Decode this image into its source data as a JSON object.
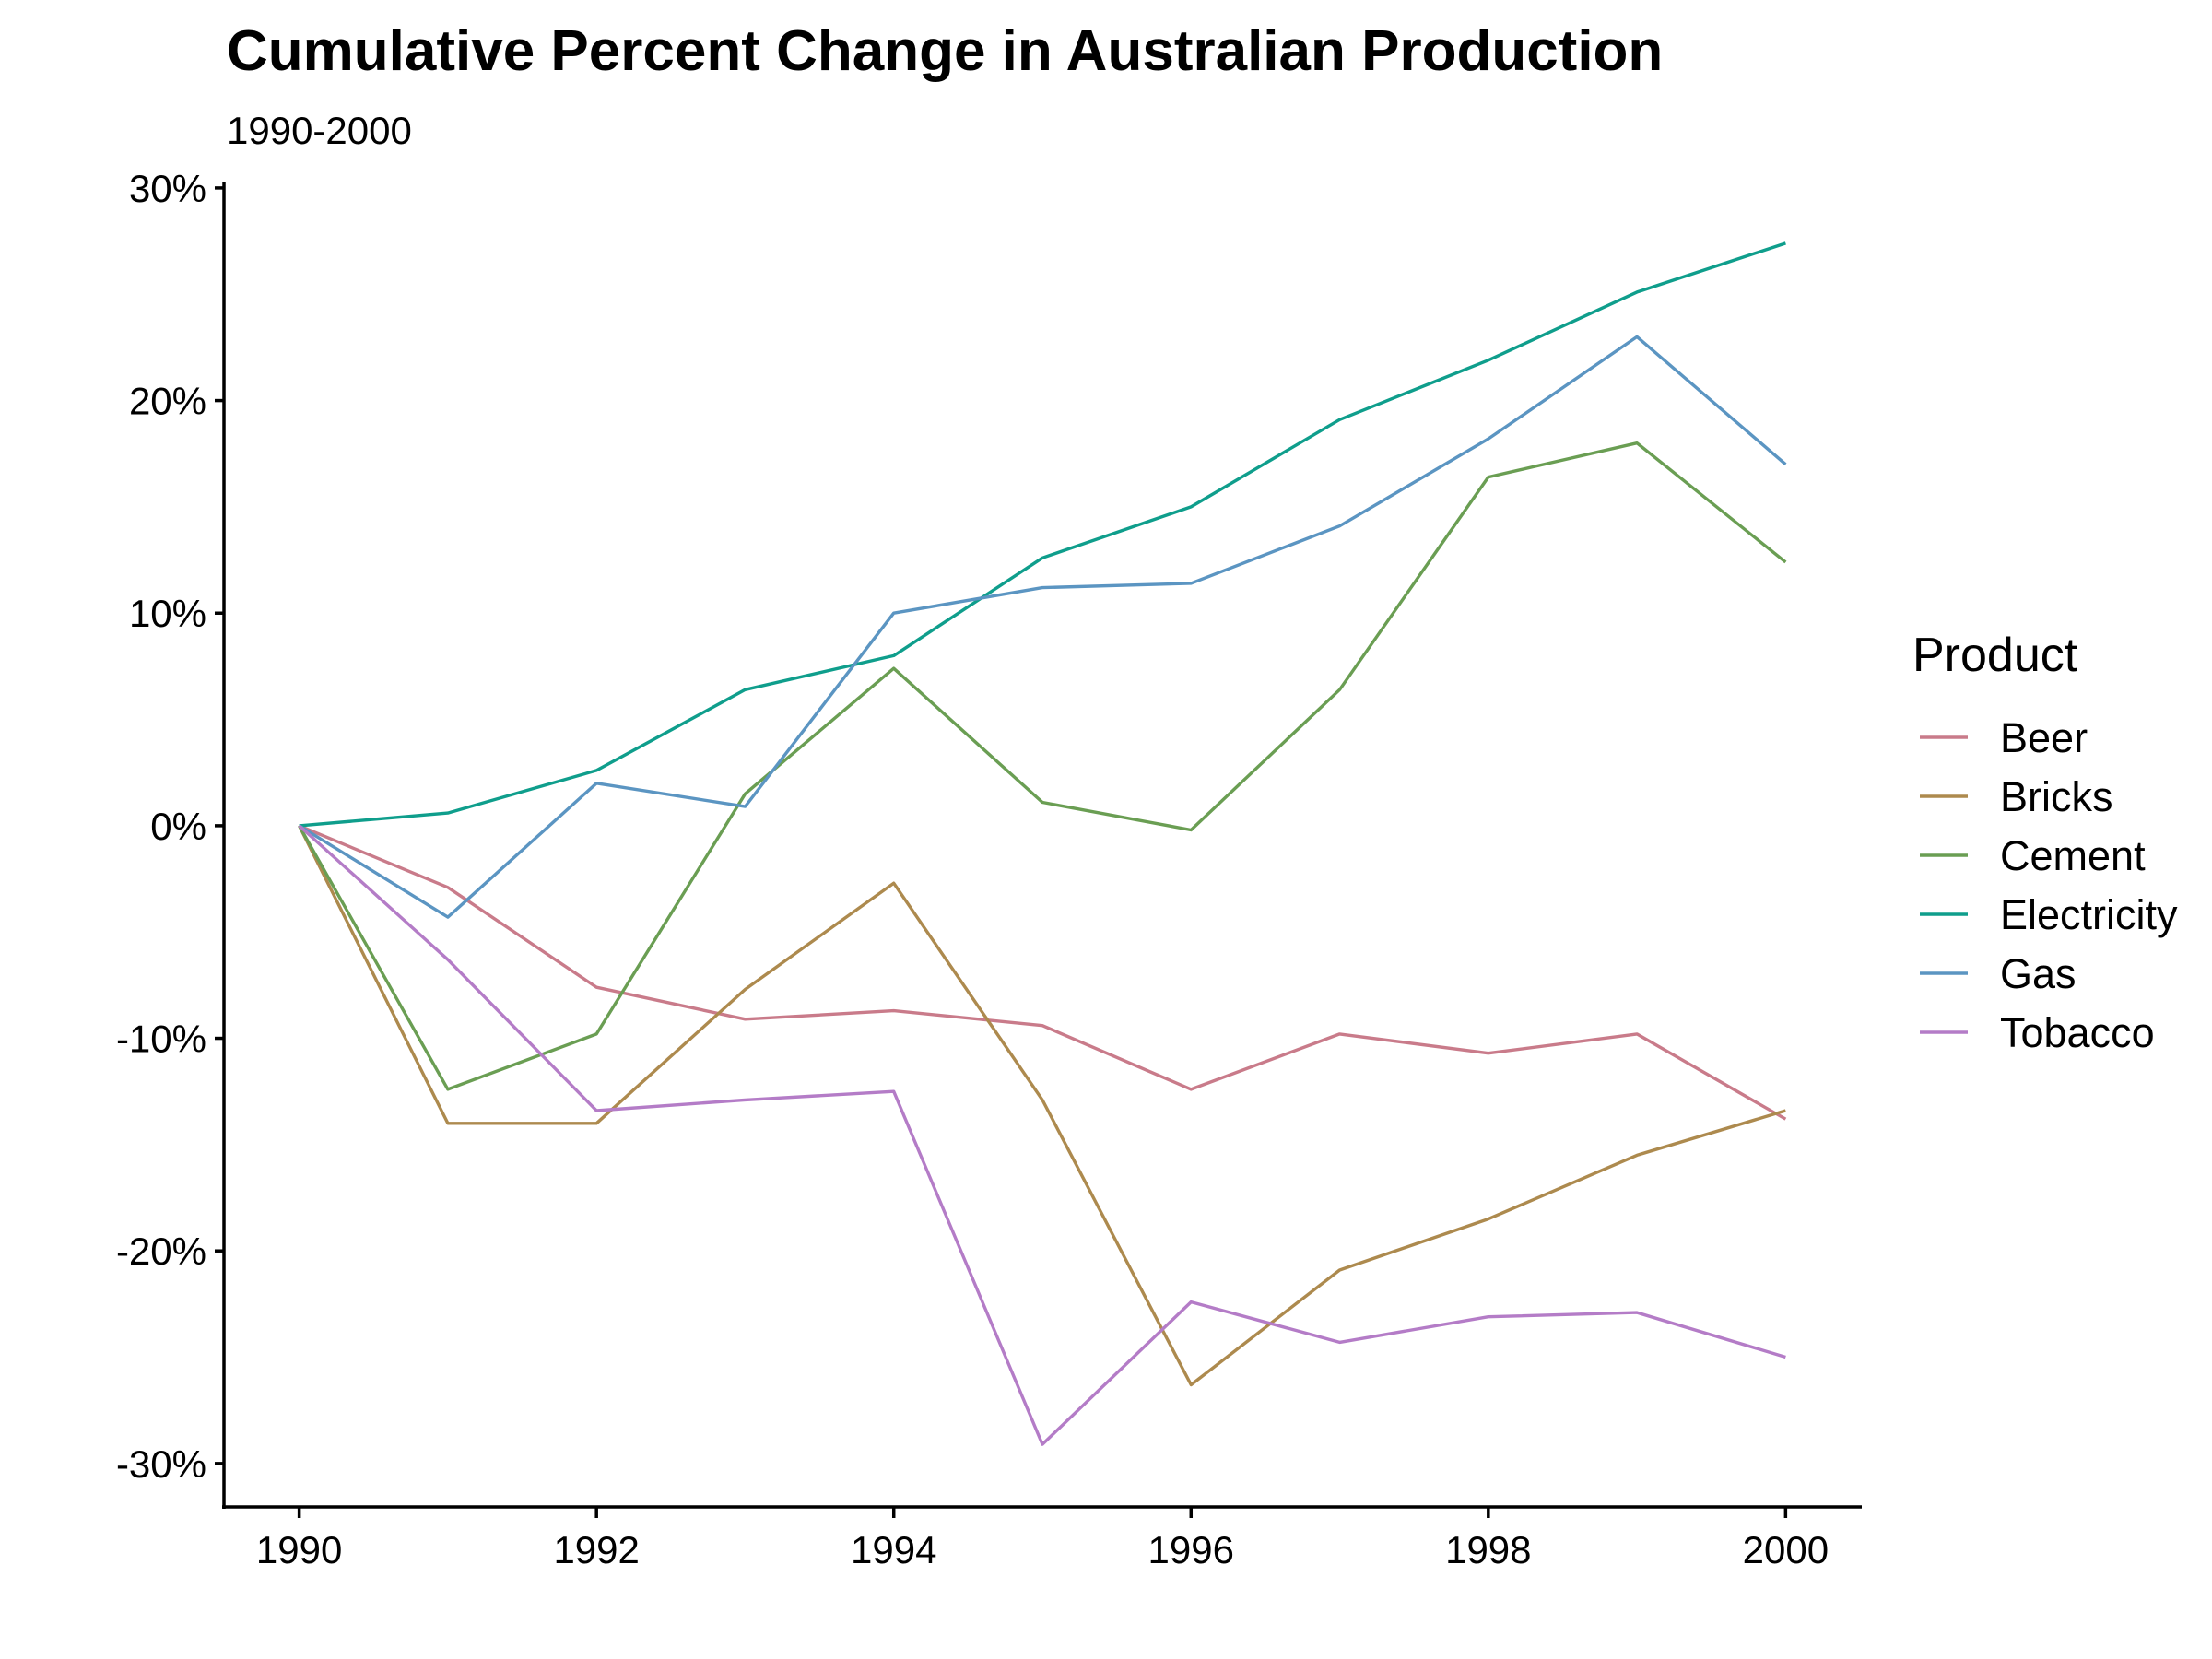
{
  "chart_data": {
    "type": "line",
    "title": "Cumulative Percent Change in Australian Production",
    "subtitle": "1990-2000",
    "xlabel": "",
    "ylabel": "",
    "x": [
      1990,
      1991,
      1992,
      1993,
      1994,
      1995,
      1996,
      1997,
      1998,
      1999,
      2000
    ],
    "x_ticks": [
      "1990",
      "1992",
      "1994",
      "1996",
      "1998",
      "2000"
    ],
    "y_ticks": [
      "-30%",
      "-20%",
      "-10%",
      "0%",
      "10%",
      "20%",
      "30%"
    ],
    "xlim": [
      1989.5,
      2000.5
    ],
    "ylim": [
      -32,
      30.3
    ],
    "grid": false,
    "legend": {
      "title": "Product",
      "placement": "right"
    },
    "series": [
      {
        "name": "Beer",
        "color": "#C97B8A",
        "values": [
          0,
          -2.9,
          -7.6,
          -9.1,
          -8.7,
          -9.4,
          -12.4,
          -9.8,
          -10.7,
          -9.8,
          -13.8
        ]
      },
      {
        "name": "Bricks",
        "color": "#AD8A4E",
        "values": [
          0,
          -14,
          -14,
          -7.7,
          -2.7,
          -12.9,
          -26.3,
          -20.9,
          -18.5,
          -15.5,
          -13.4
        ]
      },
      {
        "name": "Cement",
        "color": "#6A9E53",
        "values": [
          0,
          -12.4,
          -9.8,
          1.5,
          7.4,
          1.1,
          -0.2,
          6.4,
          16.4,
          18.0,
          12.4
        ]
      },
      {
        "name": "Electricity",
        "color": "#0F9E8C",
        "values": [
          0,
          0.6,
          2.6,
          6.4,
          8.0,
          12.6,
          15.0,
          19.1,
          21.9,
          25.1,
          27.4
        ]
      },
      {
        "name": "Gas",
        "color": "#5B95C2",
        "values": [
          0,
          -4.3,
          2.0,
          0.9,
          10.0,
          11.2,
          11.4,
          14.1,
          18.2,
          23.0,
          17.0
        ]
      },
      {
        "name": "Tobacco",
        "color": "#B47CC7",
        "values": [
          0,
          -6.3,
          -13.4,
          -12.9,
          -12.5,
          -29.1,
          -22.4,
          -24.3,
          -23.1,
          -22.9,
          -25.0
        ]
      }
    ]
  }
}
